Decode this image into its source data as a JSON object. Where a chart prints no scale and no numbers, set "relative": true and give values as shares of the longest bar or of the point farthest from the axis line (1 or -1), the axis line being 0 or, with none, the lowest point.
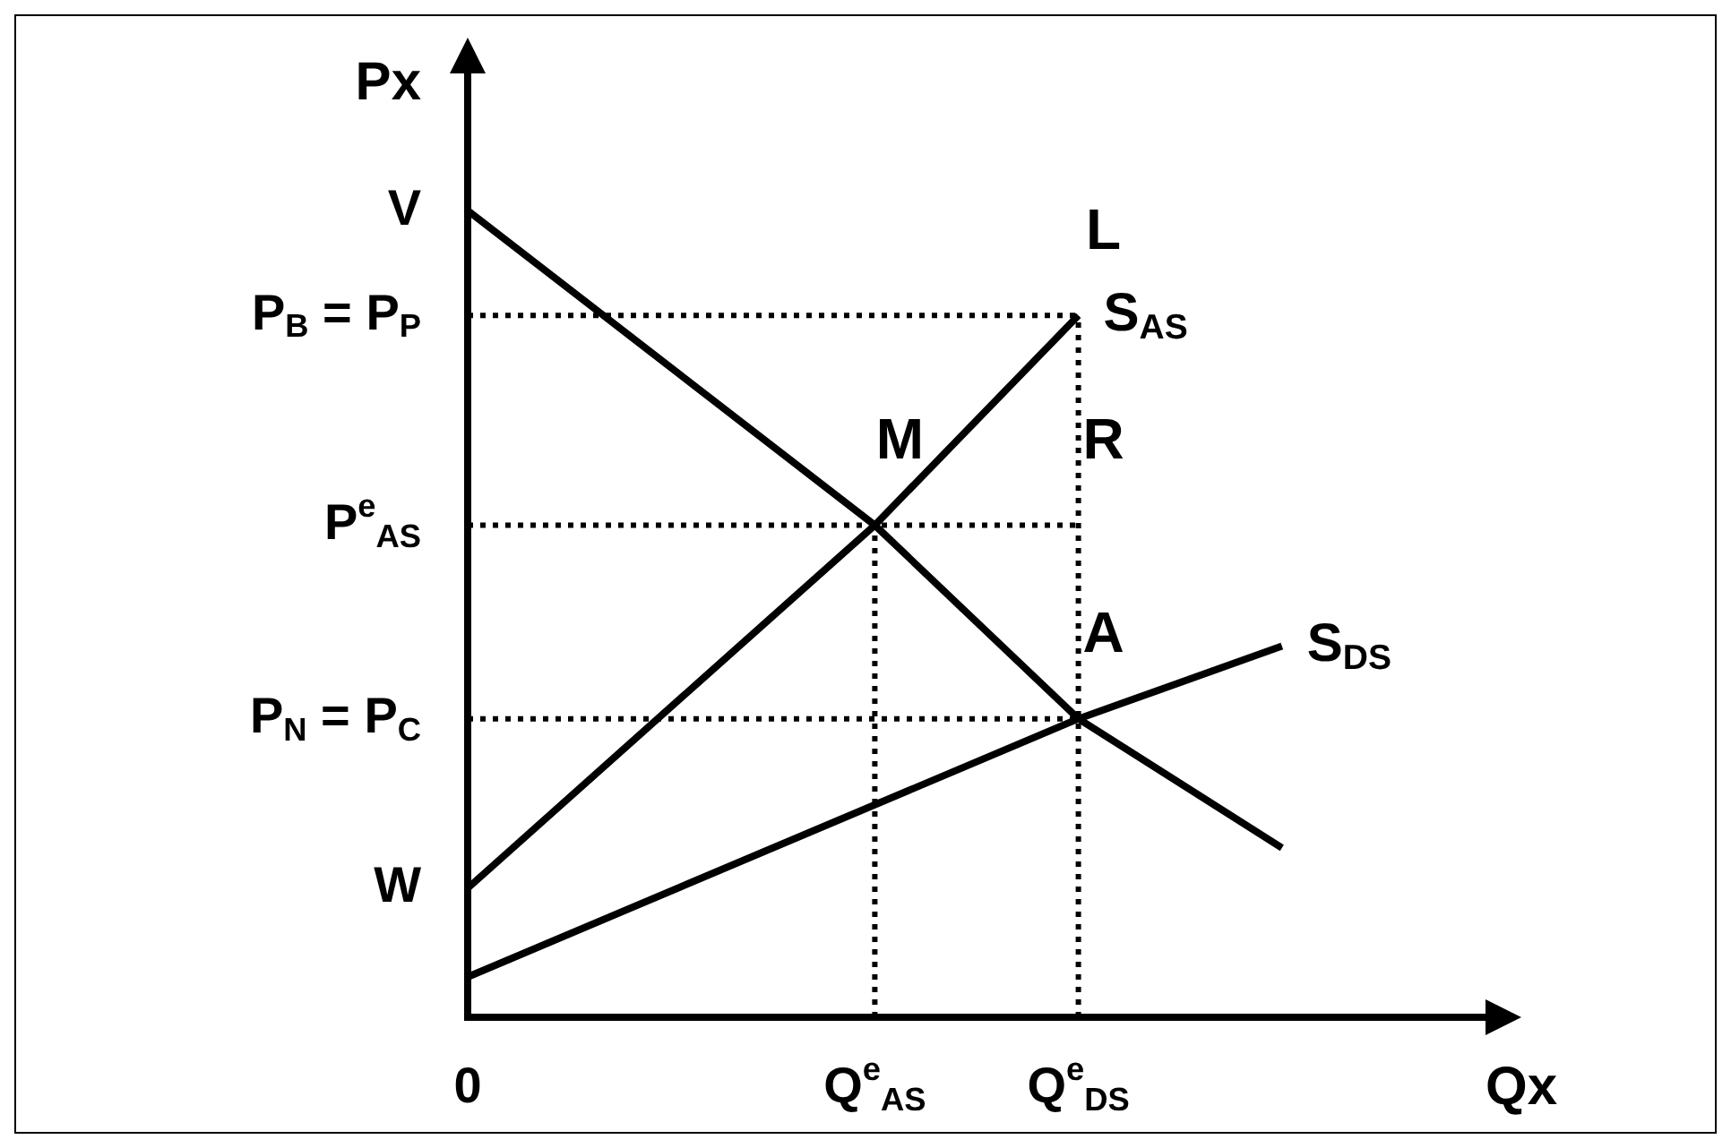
{
  "chart_data": {
    "type": "line",
    "relative": true,
    "ylabel": "Px",
    "xlabel": "Qx",
    "legend": false,
    "marker": "none",
    "categories": [
      "0",
      null,
      null,
      null,
      "Q$^{e}$$_{AS}$",
      null,
      "Q$^{e}$$_{DS}$",
      null,
      null,
      null,
      null
    ],
    "series": [
      {
        "color": "#000000",
        "values": [
          1,
          null,
          null,
          null,
          0.61,
          null,
          0.37,
          null,
          0.21,
          null,
          null
        ]
      },
      {
        "name": "S$_{AS}$",
        "color": "#000000",
        "values": [
          0.16,
          null,
          null,
          null,
          0.61,
          null,
          0.87,
          null,
          null,
          null,
          null
        ]
      },
      {
        "name": "S$_{DS}$",
        "color": "#000000",
        "values": [
          0.05,
          null,
          null,
          null,
          null,
          null,
          0.37,
          null,
          0.46,
          null,
          null
        ]
      },
      {
        "color": "#000000",
        "line_style": "dotted",
        "values": [
          0.87,
          null,
          null,
          null,
          null,
          null,
          0.87,
          null,
          null,
          null,
          null
        ]
      },
      {
        "color": "#000000",
        "line_style": "dotted",
        "values": [
          0.61,
          null,
          null,
          null,
          0.61,
          null,
          0.61,
          null,
          null,
          null,
          null
        ]
      },
      {
        "color": "#000000",
        "line_style": "dotted",
        "values": [
          0.37,
          null,
          null,
          null,
          null,
          null,
          0.37,
          null,
          null,
          null,
          null
        ]
      }
    ],
    "annotations": [
      "V",
      "P$_{B}$ = P$_{P}$",
      "P$^{e}$$_{AS}$",
      "P$_{N}$ = P$_{C}$",
      "W",
      {
        "text": "L",
        "x": "Q$^{e}$$_{DS}$",
        "y": 0.87
      },
      {
        "text": "M",
        "x": "Q$^{e}$$_{AS}$",
        "y": 0.61
      },
      {
        "text": "R",
        "x": "Q$^{e}$$_{DS}$",
        "y": 0.61
      },
      {
        "text": "A",
        "x": "Q$^{e}$$_{DS}$",
        "y": 0.37
      }
    ]
  }
}
